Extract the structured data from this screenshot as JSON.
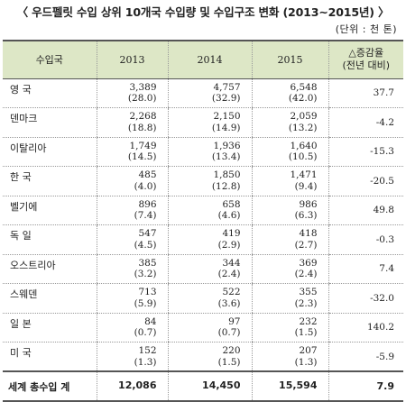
{
  "title": "〈 우드펠릿 수입 상위 10개국 수입량 및 수입구조 변화 (2013∼2015년) 〉",
  "unit": "(단위 : 천 톤)",
  "table": {
    "headers": {
      "country": "수입국",
      "y2013": "2013",
      "y2014": "2014",
      "y2015": "2015",
      "change_line1": "△증감율",
      "change_line2": "(전년 대비)"
    },
    "rows": [
      {
        "country": "영  국",
        "v2013": "3,389",
        "p2013": "(28.0)",
        "v2014": "4,757",
        "p2014": "(32.9)",
        "v2015": "6,548",
        "p2015": "(42.0)",
        "change": "37.7"
      },
      {
        "country": "덴마크",
        "v2013": "2,268",
        "p2013": "(18.8)",
        "v2014": "2,150",
        "p2014": "(14.9)",
        "v2015": "2,059",
        "p2015": "(13.2)",
        "change": "-4.2"
      },
      {
        "country": "이탈리아",
        "v2013": "1,749",
        "p2013": "(14.5)",
        "v2014": "1,936",
        "p2014": "(13.4)",
        "v2015": "1,640",
        "p2015": "(10.5)",
        "change": "-15.3"
      },
      {
        "country": "한  국",
        "v2013": "485",
        "p2013": "(4.0)",
        "v2014": "1,850",
        "p2014": "(12.8)",
        "v2015": "1,471",
        "p2015": "(9.4)",
        "change": "-20.5"
      },
      {
        "country": "벨기에",
        "v2013": "896",
        "p2013": "(7.4)",
        "v2014": "658",
        "p2014": "(4.6)",
        "v2015": "986",
        "p2015": "(6.3)",
        "change": "49.8"
      },
      {
        "country": "독  일",
        "v2013": "547",
        "p2013": "(4.5)",
        "v2014": "419",
        "p2014": "(2.9)",
        "v2015": "418",
        "p2015": "(2.7)",
        "change": "-0.3"
      },
      {
        "country": "오스트리아",
        "v2013": "385",
        "p2013": "(3.2)",
        "v2014": "344",
        "p2014": "(2.4)",
        "v2015": "369",
        "p2015": "(2.4)",
        "change": "7.4"
      },
      {
        "country": "스웨덴",
        "v2013": "713",
        "p2013": "(5.9)",
        "v2014": "522",
        "p2014": "(3.6)",
        "v2015": "355",
        "p2015": "(2.3)",
        "change": "-32.0"
      },
      {
        "country": "일  본",
        "v2013": "84",
        "p2013": "(0.7)",
        "v2014": "97",
        "p2014": "(0.7)",
        "v2015": "232",
        "p2015": "(1.5)",
        "change": "140.2"
      },
      {
        "country": "미  국",
        "v2013": "152",
        "p2013": "(1.3)",
        "v2014": "220",
        "p2014": "(1.5)",
        "v2015": "207",
        "p2015": "(1.3)",
        "change": "-5.9"
      }
    ],
    "total": {
      "label": "세계 총수입 계",
      "v2013": "12,086",
      "v2014": "14,450",
      "v2015": "15,594",
      "change": "7.9"
    }
  },
  "colors": {
    "header_bg": "#dde7c6",
    "rule": "#555555"
  }
}
